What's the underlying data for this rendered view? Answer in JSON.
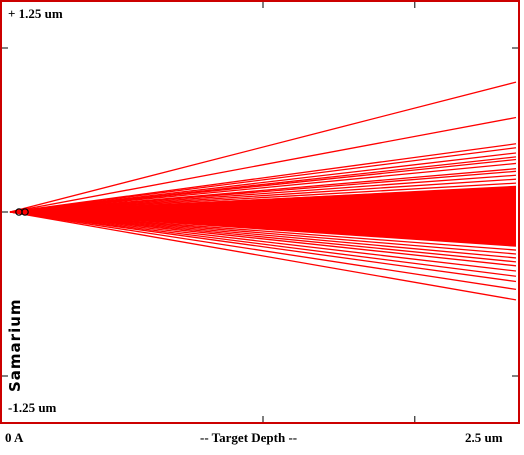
{
  "chart_data": {
    "type": "line",
    "title": "",
    "element": "Samarium",
    "xlabel": "-- Target Depth --",
    "x_tick_labels": {
      "start": "0 A",
      "end": "2.5 um"
    },
    "y_tick_labels": {
      "top": "+ 1.25 um",
      "bottom": "-1.25 um"
    },
    "xlim": [
      0,
      2.5
    ],
    "ylim": [
      -1.25,
      1.25
    ],
    "x_unit": "um",
    "y_unit": "um",
    "series": [
      {
        "values": [
          [
            0,
            0
          ],
          [
            2.5,
            0.99
          ]
        ]
      },
      {
        "values": [
          [
            0,
            0
          ],
          [
            2.5,
            0.72
          ]
        ]
      },
      {
        "values": [
          [
            0,
            0
          ],
          [
            2.5,
            0.52
          ]
        ]
      },
      {
        "values": [
          [
            0,
            0
          ],
          [
            2.5,
            0.49
          ]
        ]
      },
      {
        "values": [
          [
            0,
            0
          ],
          [
            2.5,
            0.45
          ]
        ]
      },
      {
        "values": [
          [
            0,
            0
          ],
          [
            2.5,
            0.42
          ]
        ]
      },
      {
        "values": [
          [
            0,
            0
          ],
          [
            2.5,
            0.4
          ]
        ]
      },
      {
        "values": [
          [
            0,
            0
          ],
          [
            2.5,
            0.37
          ]
        ]
      },
      {
        "values": [
          [
            0,
            0
          ],
          [
            2.5,
            0.33
          ]
        ]
      },
      {
        "values": [
          [
            0,
            0
          ],
          [
            2.5,
            0.31
          ]
        ]
      },
      {
        "values": [
          [
            0,
            0
          ],
          [
            2.5,
            0.28
          ]
        ]
      },
      {
        "values": [
          [
            0,
            0
          ],
          [
            2.5,
            0.25
          ]
        ]
      },
      {
        "values": [
          [
            0,
            0
          ],
          [
            2.5,
            0.22
          ]
        ]
      },
      {
        "values": [
          [
            0,
            0
          ],
          [
            2.5,
            0.19
          ]
        ]
      },
      {
        "values": [
          [
            0,
            0
          ],
          [
            2.5,
            0.16
          ]
        ]
      },
      {
        "values": [
          [
            0,
            0
          ],
          [
            2.5,
            0.13
          ]
        ]
      },
      {
        "values": [
          [
            0,
            0
          ],
          [
            2.5,
            0.1
          ]
        ]
      },
      {
        "values": [
          [
            0,
            0
          ],
          [
            2.5,
            0.07
          ]
        ]
      },
      {
        "values": [
          [
            0,
            0
          ],
          [
            2.5,
            0.04
          ]
        ]
      },
      {
        "values": [
          [
            0,
            0
          ],
          [
            2.5,
            0.01
          ]
        ]
      },
      {
        "values": [
          [
            0,
            0
          ],
          [
            2.5,
            -0.02
          ]
        ]
      },
      {
        "values": [
          [
            0,
            0
          ],
          [
            2.5,
            -0.05
          ]
        ]
      },
      {
        "values": [
          [
            0,
            0
          ],
          [
            2.5,
            -0.08
          ]
        ]
      },
      {
        "values": [
          [
            0,
            0
          ],
          [
            2.5,
            -0.11
          ]
        ]
      },
      {
        "values": [
          [
            0,
            0
          ],
          [
            2.5,
            -0.14
          ]
        ]
      },
      {
        "values": [
          [
            0,
            0
          ],
          [
            2.5,
            -0.17
          ]
        ]
      },
      {
        "values": [
          [
            0,
            0
          ],
          [
            2.5,
            -0.2
          ]
        ]
      },
      {
        "values": [
          [
            0,
            0
          ],
          [
            2.5,
            -0.23
          ]
        ]
      },
      {
        "values": [
          [
            0,
            0
          ],
          [
            2.5,
            -0.26
          ]
        ]
      },
      {
        "values": [
          [
            0,
            0
          ],
          [
            2.5,
            -0.29
          ]
        ]
      },
      {
        "values": [
          [
            0,
            0
          ],
          [
            2.5,
            -0.32
          ]
        ]
      },
      {
        "values": [
          [
            0,
            0
          ],
          [
            2.5,
            -0.35
          ]
        ]
      },
      {
        "values": [
          [
            0,
            0
          ],
          [
            2.5,
            -0.38
          ]
        ]
      },
      {
        "values": [
          [
            0,
            0
          ],
          [
            2.5,
            -0.41
          ]
        ]
      },
      {
        "values": [
          [
            0,
            0
          ],
          [
            2.5,
            -0.45
          ]
        ]
      },
      {
        "values": [
          [
            0,
            0
          ],
          [
            2.5,
            -0.49
          ]
        ]
      },
      {
        "values": [
          [
            0,
            0
          ],
          [
            2.5,
            -0.53
          ]
        ]
      },
      {
        "values": [
          [
            0,
            0
          ],
          [
            2.5,
            -0.59
          ]
        ]
      },
      {
        "values": [
          [
            0,
            0
          ],
          [
            2.5,
            -0.67
          ]
        ]
      }
    ],
    "line_color": "#ff0000",
    "frame_color": "#cc0000",
    "grid": false
  }
}
